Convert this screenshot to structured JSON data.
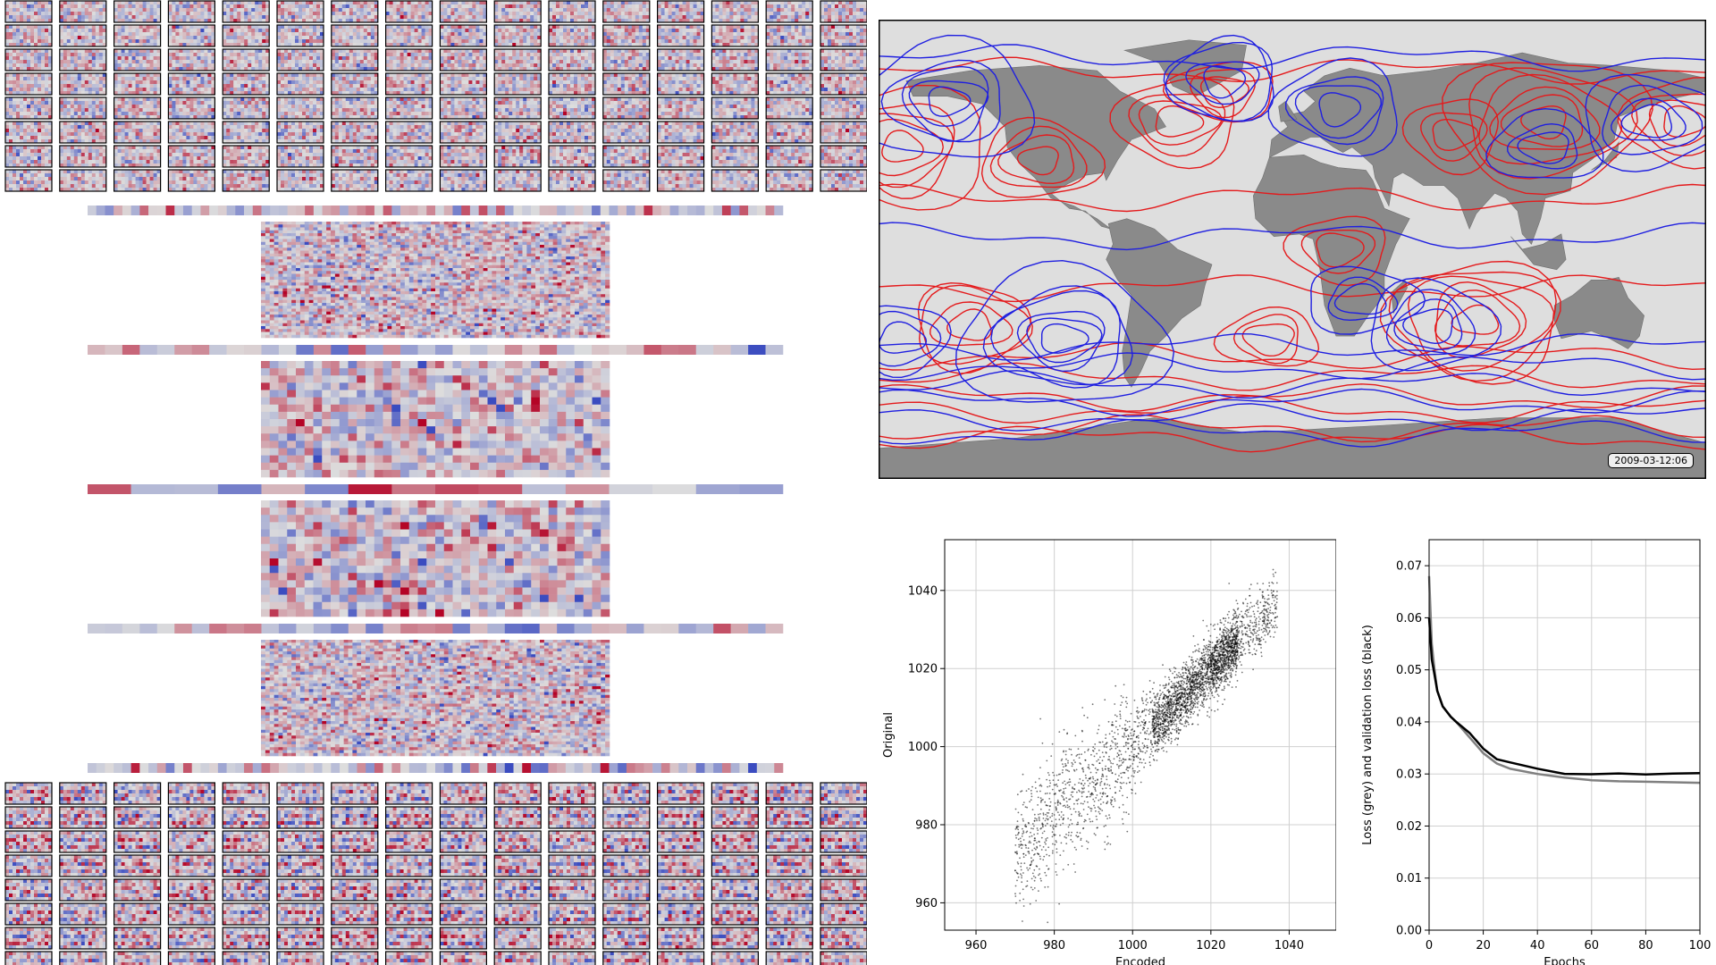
{
  "palette": {
    "cool": "#3b4cc0",
    "warm": "#b40426",
    "neutral": "#dddddd",
    "land": "#8a8a8a",
    "ocean": "#dedede",
    "contour_red": "#e41a1c",
    "contour_blue": "#1f1fe0"
  },
  "map": {
    "timestamp": "2009-03-12:06",
    "background": "Earth orography and sea",
    "series": [
      "red contours",
      "blue contours"
    ]
  },
  "network": {
    "input_grid": {
      "cols": 16,
      "rows": 8
    },
    "output_grid": {
      "cols": 16,
      "rows": 8
    },
    "layers": 4
  },
  "chart_data": [
    {
      "type": "scatter",
      "title": "",
      "xlabel": "Encoded",
      "ylabel": "Original",
      "xlim": [
        952,
        1052
      ],
      "ylim": [
        953,
        1053
      ],
      "xticks": [
        "960",
        "980",
        "1000",
        "1020",
        "1040"
      ],
      "yticks": [
        "960",
        "980",
        "1000",
        "1020",
        "1040"
      ],
      "grid": true,
      "series": [
        {
          "points_summary": "Dense black cloud along the 1:1 line",
          "x_range": [
            970,
            1037
          ],
          "y_range": [
            955,
            1050
          ],
          "center": [
            1013,
            1013
          ]
        }
      ]
    },
    {
      "type": "line",
      "title": "",
      "xlabel": "Epochs",
      "ylabel": "Loss (grey) and validation loss (black)",
      "xlim": [
        0,
        100
      ],
      "ylim": [
        0.0,
        0.075
      ],
      "xticks": [
        "0",
        "20",
        "40",
        "60",
        "80",
        "100"
      ],
      "yticks": [
        "0.00",
        "0.01",
        "0.02",
        "0.03",
        "0.04",
        "0.05",
        "0.06",
        "0.07"
      ],
      "grid": true,
      "series": [
        {
          "name": "loss",
          "color": "#808080",
          "x": [
            0,
            1,
            2,
            3,
            5,
            8,
            10,
            15,
            20,
            25,
            30,
            40,
            50,
            60,
            70,
            80,
            90,
            100
          ],
          "values": [
            0.068,
            0.055,
            0.05,
            0.046,
            0.043,
            0.041,
            0.04,
            0.037,
            0.034,
            0.032,
            0.031,
            0.03,
            0.0293,
            0.0288,
            0.0286,
            0.0285,
            0.0284,
            0.0283
          ]
        },
        {
          "name": "validation loss",
          "color": "#000000",
          "x": [
            0,
            1,
            2,
            3,
            5,
            8,
            10,
            15,
            20,
            25,
            30,
            40,
            50,
            60,
            70,
            80,
            90,
            100
          ],
          "values": [
            0.06,
            0.052,
            0.049,
            0.046,
            0.043,
            0.041,
            0.04,
            0.038,
            0.035,
            0.033,
            0.032,
            0.031,
            0.03,
            0.03,
            0.03,
            0.03,
            0.03,
            0.03
          ]
        }
      ]
    }
  ]
}
